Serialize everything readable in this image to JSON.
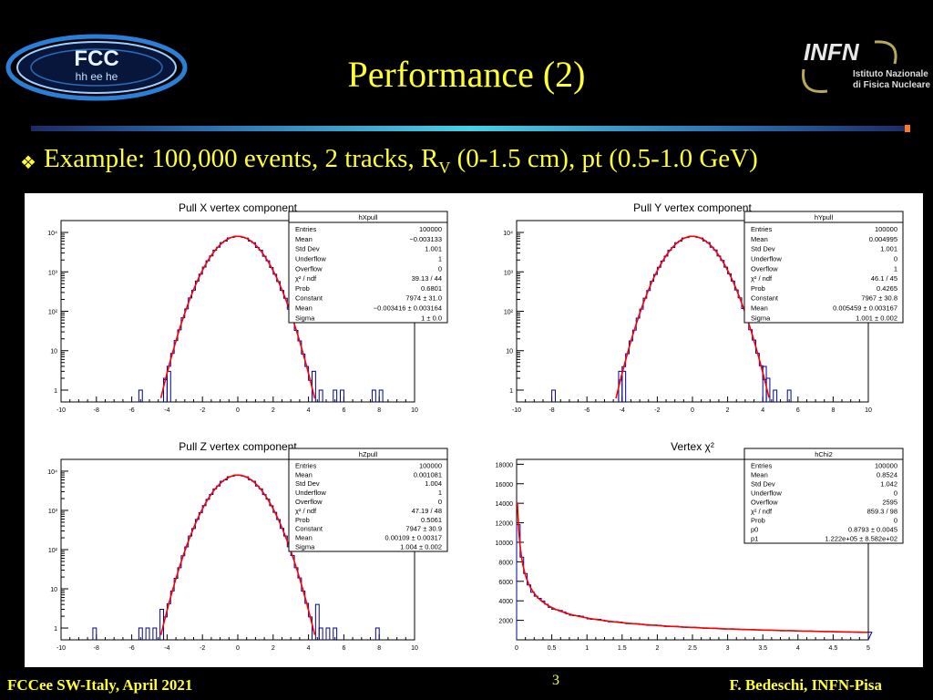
{
  "slide": {
    "title": "Performance (2)",
    "subtitle_pre": "Example: 100,000 events, 2 tracks, R",
    "subtitle_sub": "V",
    "subtitle_post": " (0-1.5 cm), pt (0.5-1.0 GeV)",
    "footer_left": "FCCee SW-Italy, April 2021",
    "page_number": "3",
    "footer_right": "F. Bedeschi, INFN-Pisa",
    "logo_fcc_top": "FCC",
    "logo_fcc_bottom": "hh ee he",
    "logo_infn": "INFN",
    "logo_infn_sub1": "Istituto Nazionale",
    "logo_infn_sub2": "di Fisica Nucleare",
    "colors": {
      "title": "#ffff33",
      "hist": "#000099",
      "fit": "#ff0000",
      "background": "#000000"
    }
  },
  "chart_data": [
    {
      "type": "histogram",
      "title": "Pull X vertex component",
      "scale": "log",
      "xlim": [
        -10,
        10
      ],
      "xticks": [
        "-10",
        "-8",
        "-6",
        "-4",
        "-2",
        "0",
        "2",
        "4",
        "6",
        "8",
        "10"
      ],
      "ylim": [
        0.5,
        20000
      ],
      "yticks": [
        {
          "v": 1,
          "label": "1"
        },
        {
          "v": 10,
          "label": "10"
        },
        {
          "v": 100,
          "label": "10²"
        },
        {
          "v": 1000,
          "label": "10³"
        },
        {
          "v": 10000,
          "label": "10⁴"
        }
      ],
      "gauss": {
        "constant": 7974,
        "mean": -0.0034,
        "sigma": 1.0
      },
      "outliers": [
        [
          -5.6,
          1
        ],
        [
          -4.2,
          2
        ],
        [
          -4.0,
          3
        ],
        [
          4.2,
          3
        ],
        [
          4.6,
          1
        ],
        [
          5.4,
          1
        ],
        [
          5.8,
          1
        ],
        [
          7.6,
          1
        ],
        [
          8.0,
          1
        ]
      ],
      "stats": {
        "name": "hXpull",
        "rows": [
          [
            "Entries",
            "100000"
          ],
          [
            "Mean",
            "−0.003133"
          ],
          [
            "Std Dev",
            "1.001"
          ],
          [
            "Underflow",
            "1"
          ],
          [
            "Overflow",
            "0"
          ],
          [
            "χ² / ndf",
            "39.13 / 44"
          ],
          [
            "Prob",
            "0.6801"
          ],
          [
            "Constant",
            "7974 ± 31.0"
          ],
          [
            "Mean",
            "−0.003416 ± 0.003164"
          ],
          [
            "Sigma",
            "1 ± 0.0"
          ]
        ]
      }
    },
    {
      "type": "histogram",
      "title": "Pull Y vertex component",
      "scale": "log",
      "xlim": [
        -10,
        10
      ],
      "xticks": [
        "-10",
        "-8",
        "-6",
        "-4",
        "-2",
        "0",
        "2",
        "4",
        "6",
        "8",
        "10"
      ],
      "ylim": [
        0.5,
        20000
      ],
      "yticks": [
        {
          "v": 1,
          "label": "1"
        },
        {
          "v": 10,
          "label": "10"
        },
        {
          "v": 100,
          "label": "10²"
        },
        {
          "v": 1000,
          "label": "10³"
        },
        {
          "v": 10000,
          "label": "10⁴"
        }
      ],
      "gauss": {
        "constant": 7967,
        "mean": 0.0055,
        "sigma": 1.001
      },
      "outliers": [
        [
          -8.0,
          1
        ],
        [
          -4.2,
          3
        ],
        [
          -4.0,
          3
        ],
        [
          4.0,
          4
        ],
        [
          4.2,
          2
        ],
        [
          4.6,
          1
        ],
        [
          5.4,
          1
        ]
      ],
      "stats": {
        "name": "hYpull",
        "rows": [
          [
            "Entries",
            "100000"
          ],
          [
            "Mean",
            "0.004995"
          ],
          [
            "Std Dev",
            "1.001"
          ],
          [
            "Underflow",
            "0"
          ],
          [
            "Overflow",
            "1"
          ],
          [
            "χ² / ndf",
            "46.1 / 45"
          ],
          [
            "Prob",
            "0.4265"
          ],
          [
            "Constant",
            "7967 ± 30.8"
          ],
          [
            "Mean",
            "0.005459 ± 0.003167"
          ],
          [
            "Sigma",
            "1.001 ± 0.002"
          ]
        ]
      }
    },
    {
      "type": "histogram",
      "title": "Pull Z vertex component",
      "scale": "log",
      "xlim": [
        -10,
        10
      ],
      "xticks": [
        "-10",
        "-8",
        "-6",
        "-4",
        "-2",
        "0",
        "2",
        "4",
        "6",
        "8",
        "10"
      ],
      "ylim": [
        0.5,
        20000
      ],
      "yticks": [
        {
          "v": 1,
          "label": "1"
        },
        {
          "v": 10,
          "label": "10"
        },
        {
          "v": 100,
          "label": "10²"
        },
        {
          "v": 1000,
          "label": "10³"
        },
        {
          "v": 10000,
          "label": "10⁴"
        }
      ],
      "gauss": {
        "constant": 7947,
        "mean": 0.0011,
        "sigma": 1.004
      },
      "outliers": [
        [
          -8.2,
          1
        ],
        [
          -5.6,
          1
        ],
        [
          -5.2,
          1
        ],
        [
          -4.8,
          1
        ],
        [
          -4.4,
          3
        ],
        [
          4.4,
          4
        ],
        [
          4.6,
          1
        ],
        [
          5.0,
          1
        ],
        [
          5.4,
          1
        ],
        [
          7.8,
          1
        ]
      ],
      "stats": {
        "name": "hZpull",
        "rows": [
          [
            "Entries",
            "100000"
          ],
          [
            "Mean",
            "0.001081"
          ],
          [
            "Std Dev",
            "1.004"
          ],
          [
            "Underflow",
            "1"
          ],
          [
            "Overflow",
            "0"
          ],
          [
            "χ² / ndf",
            "47.19 / 48"
          ],
          [
            "Prob",
            "0.5061"
          ],
          [
            "Constant",
            "7947 ± 30.9"
          ],
          [
            "Mean",
            "0.00109 ± 0.00317"
          ],
          [
            "Sigma",
            "1.004 ± 0.002"
          ]
        ]
      }
    },
    {
      "type": "histogram",
      "title": "Vertex χ²",
      "scale": "linear",
      "xlim": [
        0,
        5
      ],
      "xticks": [
        "0",
        "0.5",
        "1",
        "1.5",
        "2",
        "2.5",
        "3",
        "3.5",
        "4",
        "4.5",
        "5"
      ],
      "ylim": [
        0,
        18500
      ],
      "yticks": [
        {
          "v": 2000,
          "label": "2000"
        },
        {
          "v": 4000,
          "label": "4000"
        },
        {
          "v": 6000,
          "label": "6000"
        },
        {
          "v": 8000,
          "label": "8000"
        },
        {
          "v": 10000,
          "label": "10000"
        },
        {
          "v": 12000,
          "label": "12000"
        },
        {
          "v": 14000,
          "label": "14000"
        },
        {
          "v": 16000,
          "label": "16000"
        },
        {
          "v": 18000,
          "label": "18000"
        }
      ],
      "fit": {
        "p0": 0.8793,
        "p1": 122200
      },
      "stats": {
        "name": "hChi2",
        "rows": [
          [
            "Entries",
            "100000"
          ],
          [
            "Mean",
            "0.8524"
          ],
          [
            "Std Dev",
            "1.042"
          ],
          [
            "Underflow",
            "0"
          ],
          [
            "Overflow",
            "2595"
          ],
          [
            "χ² / ndf",
            "859.3 / 98"
          ],
          [
            "Prob",
            "0"
          ],
          [
            "p0",
            "0.8793 ± 0.0045"
          ],
          [
            "p1",
            "1.222e+05 ± 8.582e+02"
          ]
        ]
      }
    }
  ]
}
